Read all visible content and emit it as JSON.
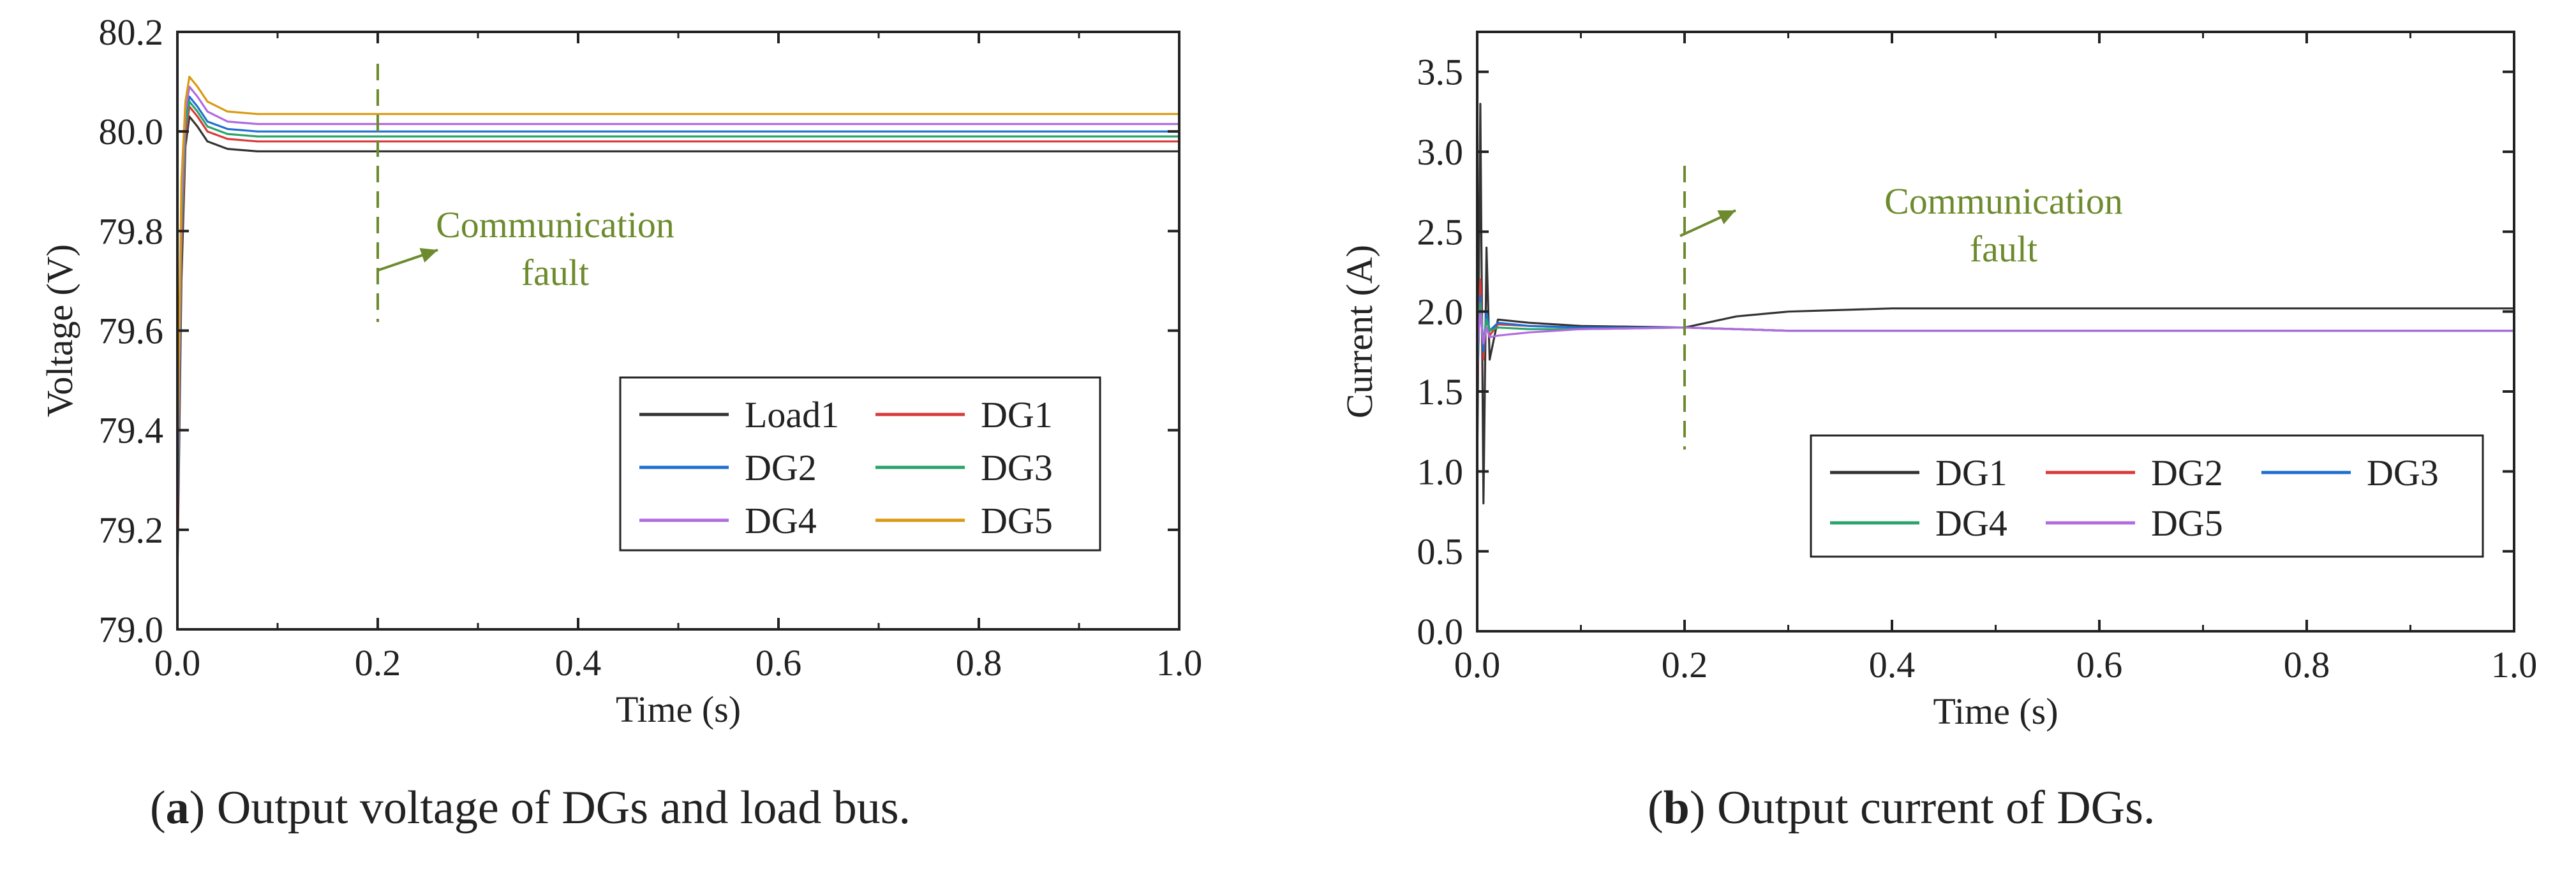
{
  "chart_data": [
    {
      "type": "line",
      "panel_letter": "a",
      "caption": "Output voltage of DGs and load bus.",
      "xlabel": "Time (s)",
      "ylabel": "Voltage (V)",
      "xlim": [
        0.0,
        1.0
      ],
      "ylim": [
        79.0,
        80.2
      ],
      "xticks": [
        "0.0",
        "0.2",
        "0.4",
        "0.6",
        "0.8",
        "1.0"
      ],
      "yticks": [
        "79.0",
        "79.2",
        "79.4",
        "79.6",
        "79.8",
        "80.0",
        "80.2"
      ],
      "annotation": {
        "lines": [
          "Communication",
          "fault"
        ],
        "time": 0.2,
        "color": "#6d8b2e"
      },
      "legend": {
        "position": "bottom-right",
        "columns": 2
      },
      "series": [
        {
          "name": "Load1",
          "color": "#333333",
          "x": [
            0.0,
            0.004,
            0.008,
            0.012,
            0.02,
            0.03,
            0.05,
            0.08,
            0.12,
            0.2,
            0.4,
            0.6,
            0.8,
            1.0
          ],
          "values": [
            79.1,
            79.7,
            79.97,
            80.03,
            80.01,
            79.98,
            79.965,
            79.96,
            79.96,
            79.96,
            79.96,
            79.96,
            79.96,
            79.96
          ]
        },
        {
          "name": "DG1",
          "color": "#d93a3a",
          "x": [
            0.0,
            0.004,
            0.008,
            0.012,
            0.02,
            0.03,
            0.05,
            0.08,
            0.12,
            0.2,
            0.4,
            0.6,
            0.8,
            1.0
          ],
          "values": [
            79.15,
            79.75,
            79.99,
            80.05,
            80.03,
            80.0,
            79.985,
            79.98,
            79.98,
            79.98,
            79.98,
            79.98,
            79.98,
            79.98
          ]
        },
        {
          "name": "DG2",
          "color": "#1f6fd1",
          "x": [
            0.0,
            0.004,
            0.008,
            0.012,
            0.02,
            0.03,
            0.05,
            0.08,
            0.12,
            0.2,
            0.4,
            0.6,
            0.8,
            1.0
          ],
          "values": [
            79.2,
            79.8,
            80.02,
            80.07,
            80.05,
            80.02,
            80.005,
            80.0,
            80.0,
            80.0,
            80.0,
            80.0,
            80.0,
            80.0
          ]
        },
        {
          "name": "DG3",
          "color": "#2aa36b",
          "x": [
            0.0,
            0.004,
            0.008,
            0.012,
            0.02,
            0.03,
            0.05,
            0.08,
            0.12,
            0.2,
            0.4,
            0.6,
            0.8,
            1.0
          ],
          "values": [
            79.25,
            79.8,
            80.01,
            80.06,
            80.04,
            80.01,
            79.995,
            79.99,
            79.99,
            79.99,
            79.99,
            79.99,
            79.99,
            79.99
          ]
        },
        {
          "name": "DG4",
          "color": "#b06be0",
          "x": [
            0.0,
            0.004,
            0.008,
            0.012,
            0.02,
            0.03,
            0.05,
            0.08,
            0.12,
            0.2,
            0.4,
            0.6,
            0.8,
            1.0
          ],
          "values": [
            79.3,
            79.85,
            80.04,
            80.09,
            80.07,
            80.04,
            80.02,
            80.015,
            80.015,
            80.015,
            80.015,
            80.015,
            80.015,
            80.015
          ]
        },
        {
          "name": "DG5",
          "color": "#d99a12",
          "x": [
            0.0,
            0.004,
            0.008,
            0.012,
            0.02,
            0.03,
            0.05,
            0.08,
            0.12,
            0.2,
            0.4,
            0.6,
            0.8,
            1.0
          ],
          "values": [
            79.35,
            79.9,
            80.06,
            80.11,
            80.09,
            80.06,
            80.04,
            80.035,
            80.035,
            80.035,
            80.035,
            80.035,
            80.035,
            80.035
          ]
        }
      ]
    },
    {
      "type": "line",
      "panel_letter": "b",
      "caption": "Output current of DGs.",
      "xlabel": "Time (s)",
      "ylabel": "Current (A)",
      "xlim": [
        0.0,
        1.0
      ],
      "ylim": [
        0.0,
        3.75
      ],
      "xticks": [
        "0.0",
        "0.2",
        "0.4",
        "0.6",
        "0.8",
        "1.0"
      ],
      "yticks": [
        "0.0",
        "0.5",
        "1.0",
        "1.5",
        "2.0",
        "2.5",
        "3.0",
        "3.5"
      ],
      "annotation": {
        "lines": [
          "Communication",
          "fault"
        ],
        "time": 0.2,
        "color": "#6d8b2e"
      },
      "legend": {
        "position": "bottom-right",
        "columns": 3
      },
      "series": [
        {
          "name": "DG1",
          "color": "#333333",
          "x": [
            0.0,
            0.003,
            0.006,
            0.009,
            0.012,
            0.02,
            0.05,
            0.1,
            0.2,
            0.25,
            0.3,
            0.4,
            0.6,
            0.8,
            1.0
          ],
          "values": [
            1.0,
            3.3,
            0.8,
            2.4,
            1.7,
            1.95,
            1.93,
            1.91,
            1.9,
            1.97,
            2.0,
            2.02,
            2.02,
            2.02,
            2.02
          ]
        },
        {
          "name": "DG2",
          "color": "#d93a3a",
          "x": [
            0.0,
            0.003,
            0.006,
            0.009,
            0.012,
            0.02,
            0.05,
            0.1,
            0.2,
            0.3,
            0.4,
            0.6,
            0.8,
            1.0
          ],
          "values": [
            1.5,
            2.2,
            1.7,
            2.0,
            1.85,
            1.92,
            1.91,
            1.9,
            1.9,
            1.88,
            1.88,
            1.88,
            1.88,
            1.88
          ]
        },
        {
          "name": "DG3",
          "color": "#1f6fd1",
          "x": [
            0.0,
            0.003,
            0.006,
            0.009,
            0.012,
            0.02,
            0.05,
            0.1,
            0.2,
            0.3,
            0.4,
            0.6,
            0.8,
            1.0
          ],
          "values": [
            1.6,
            2.1,
            1.75,
            2.0,
            1.88,
            1.93,
            1.91,
            1.9,
            1.9,
            1.88,
            1.88,
            1.88,
            1.88,
            1.88
          ]
        },
        {
          "name": "DG4",
          "color": "#2aa36b",
          "x": [
            0.0,
            0.003,
            0.006,
            0.009,
            0.012,
            0.02,
            0.05,
            0.1,
            0.2,
            0.3,
            0.4,
            0.6,
            0.8,
            1.0
          ],
          "values": [
            1.7,
            2.05,
            1.8,
            1.95,
            1.88,
            1.9,
            1.89,
            1.89,
            1.9,
            1.88,
            1.88,
            1.88,
            1.88,
            1.88
          ]
        },
        {
          "name": "DG5",
          "color": "#b06be0",
          "x": [
            0.0,
            0.003,
            0.006,
            0.009,
            0.012,
            0.02,
            0.05,
            0.1,
            0.2,
            0.3,
            0.4,
            0.6,
            0.8,
            1.0
          ],
          "values": [
            1.75,
            2.0,
            1.8,
            1.9,
            1.84,
            1.85,
            1.87,
            1.89,
            1.9,
            1.88,
            1.88,
            1.88,
            1.88,
            1.88
          ]
        }
      ]
    }
  ]
}
